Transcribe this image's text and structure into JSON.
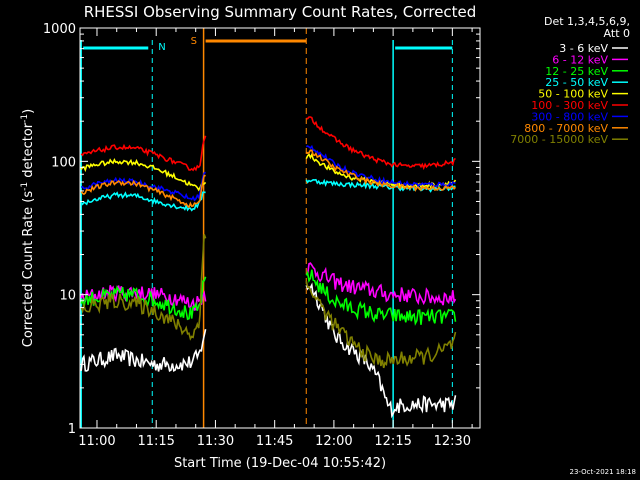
{
  "chart_data": {
    "type": "line",
    "title": "RHESSI Observing Summary Count Rates, Corrected",
    "xlabel": "Start Time (19-Dec-04 10:55:42)",
    "ylabel_main": "Corrected Count Rate (s",
    "ylabel_sup1": "-1",
    "ylabel_mid": " detector",
    "ylabel_sup2": "-1",
    "ylabel_end": ")",
    "yscale": "log",
    "ylim": [
      1,
      1000
    ],
    "xlim_minutes": [
      55.7,
      157
    ],
    "x_ticks": [
      {
        "m": 60,
        "label": "11:00"
      },
      {
        "m": 75,
        "label": "11:15"
      },
      {
        "m": 90,
        "label": "11:30"
      },
      {
        "m": 105,
        "label": "11:45"
      },
      {
        "m": 120,
        "label": "12:00"
      },
      {
        "m": 135,
        "label": "12:15"
      },
      {
        "m": 150,
        "label": "12:30"
      }
    ],
    "y_ticks": [
      {
        "v": 1,
        "label": "1"
      },
      {
        "v": 10,
        "label": "10"
      },
      {
        "v": 100,
        "label": "100"
      },
      {
        "v": 1000,
        "label": "1000"
      }
    ],
    "legend_header": [
      "Det 1,3,4,5,6,9,",
      "Att 0"
    ],
    "timestamp": "23-Oct-2021 18:18",
    "annotations": {
      "night": {
        "label": "N",
        "start": 56,
        "end": 74,
        "color": "#00ffff"
      },
      "saa": {
        "label": "S",
        "start": 87,
        "end": 113,
        "color": "#ff8800"
      }
    },
    "data_gap": [
      87.5,
      113
    ],
    "series": [
      {
        "name": "3 - 6 keV",
        "color": "#ffffff",
        "x": [
          56,
          60,
          65,
          70,
          75,
          80,
          84,
          86,
          87,
          114,
          117,
          120,
          124,
          128,
          131,
          134,
          138,
          142,
          146,
          150,
          151
        ],
        "y": [
          3.0,
          3.2,
          3.5,
          3.2,
          3.0,
          3.0,
          3.1,
          3.5,
          5.0,
          12,
          8,
          5,
          4,
          3.2,
          2.4,
          1.4,
          1.5,
          1.5,
          1.5,
          1.5,
          1.6
        ]
      },
      {
        "name": "6 - 12 keV",
        "color": "#ff00ff",
        "x": [
          56,
          60,
          65,
          70,
          75,
          80,
          84,
          86,
          87,
          114,
          117,
          120,
          124,
          128,
          131,
          134,
          138,
          142,
          146,
          150,
          151
        ],
        "y": [
          9.5,
          10,
          10.5,
          10.5,
          10,
          9.5,
          8.5,
          9,
          10,
          16,
          14,
          12.5,
          11.5,
          11,
          10.5,
          10,
          10,
          9.6,
          9.5,
          9.5,
          9.6
        ]
      },
      {
        "name": "12 - 25 keV",
        "color": "#00ff00",
        "x": [
          56,
          60,
          65,
          70,
          75,
          80,
          84,
          86,
          87,
          114,
          117,
          120,
          124,
          128,
          131,
          134,
          138,
          142,
          146,
          150,
          151
        ],
        "y": [
          9,
          9.5,
          10,
          10,
          9,
          8,
          7,
          8,
          12,
          14,
          11,
          9,
          8,
          7.5,
          7,
          7,
          6.8,
          6.8,
          6.8,
          6.8,
          7
        ]
      },
      {
        "name": "25 - 50 keV",
        "color": "#00ffff",
        "x": [
          56,
          60,
          65,
          70,
          75,
          80,
          84,
          86,
          87,
          114,
          117,
          120,
          124,
          128,
          131,
          134,
          138,
          142,
          146,
          150,
          151
        ],
        "y": [
          48,
          52,
          56,
          55,
          50,
          46,
          44,
          48,
          60,
          72,
          70,
          68,
          67,
          66,
          65,
          64,
          63,
          62,
          62,
          63,
          64
        ]
      },
      {
        "name": "50 - 100 keV",
        "color": "#ffff00",
        "x": [
          56,
          60,
          65,
          70,
          75,
          80,
          84,
          86,
          87,
          114,
          117,
          120,
          124,
          128,
          131,
          134,
          138,
          142,
          146,
          150,
          151
        ],
        "y": [
          88,
          95,
          100,
          98,
          88,
          76,
          66,
          62,
          70,
          110,
          95,
          84,
          76,
          72,
          70,
          68,
          66,
          66,
          67,
          69,
          72
        ]
      },
      {
        "name": "100 - 300 keV",
        "color": "#ff0000",
        "x": [
          56,
          60,
          65,
          70,
          75,
          80,
          84,
          86,
          87,
          114,
          117,
          120,
          124,
          128,
          131,
          134,
          138,
          142,
          146,
          150,
          151
        ],
        "y": [
          110,
          120,
          128,
          125,
          112,
          98,
          88,
          90,
          150,
          210,
          175,
          148,
          125,
          110,
          102,
          96,
          92,
          92,
          94,
          98,
          102
        ]
      },
      {
        "name": "300 - 800 keV",
        "color": "#0000ff",
        "x": [
          56,
          60,
          65,
          70,
          75,
          80,
          84,
          86,
          87,
          114,
          117,
          120,
          124,
          128,
          131,
          134,
          138,
          142,
          146,
          150,
          151
        ],
        "y": [
          62,
          68,
          72,
          70,
          64,
          58,
          52,
          55,
          80,
          130,
          112,
          96,
          84,
          77,
          73,
          70,
          68,
          67,
          67,
          68,
          70
        ]
      },
      {
        "name": "800 - 7000 keV",
        "color": "#ff8800",
        "x": [
          56,
          60,
          65,
          70,
          75,
          80,
          84,
          86,
          87,
          114,
          117,
          120,
          124,
          128,
          131,
          134,
          138,
          142,
          146,
          150,
          151
        ],
        "y": [
          58,
          64,
          70,
          68,
          60,
          52,
          46,
          50,
          75,
          120,
          105,
          90,
          80,
          72,
          68,
          66,
          64,
          63,
          63,
          63,
          64
        ]
      },
      {
        "name": "7000 - 15000 keV",
        "color": "#808000",
        "x": [
          56,
          60,
          65,
          70,
          75,
          80,
          84,
          86,
          87,
          114,
          117,
          120,
          124,
          128,
          131,
          134,
          138,
          142,
          146,
          150,
          151
        ],
        "y": [
          7.5,
          8.5,
          9,
          8.5,
          7.5,
          6,
          5,
          6,
          30,
          11,
          8,
          6,
          4.5,
          3.6,
          3.2,
          3.2,
          3.3,
          3.4,
          3.6,
          4.2,
          5
        ]
      }
    ]
  }
}
